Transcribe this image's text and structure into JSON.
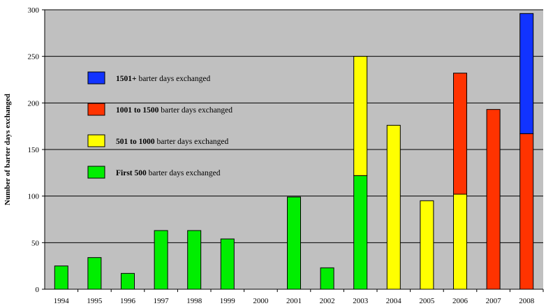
{
  "chart_data": {
    "type": "bar",
    "stacked": true,
    "ylabel": "Number of barter days exchanged",
    "xlabel": "",
    "ylim": [
      0,
      300
    ],
    "yticks": [
      0,
      50,
      100,
      150,
      200,
      250,
      300
    ],
    "grid": "horizontal",
    "background": "#c0c0c0",
    "legend_position": "top-left",
    "categories": [
      "1994",
      "1995",
      "1996",
      "1997",
      "1998",
      "1999",
      "2000",
      "2001",
      "2002",
      "2003",
      "2004",
      "2005",
      "2006",
      "2007",
      "2008"
    ],
    "series": [
      {
        "name_bold": "First 500",
        "name_rest": " barter days exchanged",
        "color": "#00ee00",
        "values": [
          25,
          34,
          17,
          63,
          63,
          54,
          0,
          99,
          23,
          122,
          0,
          0,
          0,
          0,
          0
        ]
      },
      {
        "name_bold": "501 to 1000",
        "name_rest": " barter days exchanged",
        "color": "#ffff00",
        "values": [
          0,
          0,
          0,
          0,
          0,
          0,
          0,
          0,
          0,
          128,
          176,
          95,
          102,
          0,
          0
        ]
      },
      {
        "name_bold": "1001 to 1500",
        "name_rest": " barter days exchanged",
        "color": "#ff3300",
        "values": [
          0,
          0,
          0,
          0,
          0,
          0,
          0,
          0,
          0,
          0,
          0,
          0,
          130,
          193,
          167
        ]
      },
      {
        "name_bold": "1501+",
        "name_rest": "  barter days exchanged",
        "color": "#1133ff",
        "values": [
          0,
          0,
          0,
          0,
          0,
          0,
          0,
          0,
          0,
          0,
          0,
          0,
          0,
          0,
          129
        ]
      }
    ]
  }
}
